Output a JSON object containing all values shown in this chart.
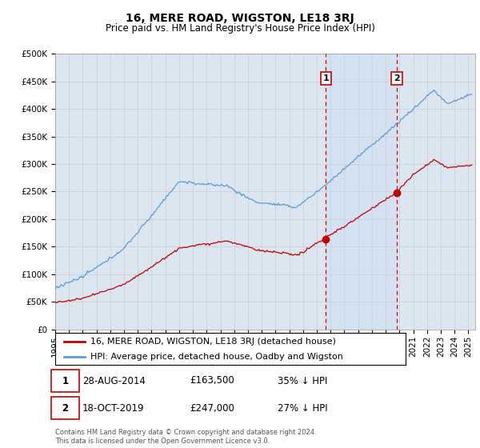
{
  "title": "16, MERE ROAD, WIGSTON, LE18 3RJ",
  "subtitle": "Price paid vs. HM Land Registry's House Price Index (HPI)",
  "ylim": [
    0,
    500000
  ],
  "yticks": [
    0,
    50000,
    100000,
    150000,
    200000,
    250000,
    300000,
    350000,
    400000,
    450000,
    500000
  ],
  "ytick_labels": [
    "£0",
    "£50K",
    "£100K",
    "£150K",
    "£200K",
    "£250K",
    "£300K",
    "£350K",
    "£400K",
    "£450K",
    "£500K"
  ],
  "xlim_start": 1995.0,
  "xlim_end": 2025.5,
  "xticks": [
    1995,
    1996,
    1997,
    1998,
    1999,
    2000,
    2001,
    2002,
    2003,
    2004,
    2005,
    2006,
    2007,
    2008,
    2009,
    2010,
    2011,
    2012,
    2013,
    2014,
    2015,
    2016,
    2017,
    2018,
    2019,
    2020,
    2021,
    2022,
    2023,
    2024,
    2025
  ],
  "hpi_color": "#5b9bd5",
  "price_color": "#c00000",
  "vline_color": "#e00000",
  "shade_color": "#dce6f1",
  "background_color": "#dce6f1",
  "grid_color": "#cccccc",
  "sale1_x": 2014.66,
  "sale1_y": 163500,
  "sale1_label": "1",
  "sale2_x": 2019.8,
  "sale2_y": 247000,
  "sale2_label": "2",
  "legend1_text": "16, MERE ROAD, WIGSTON, LE18 3RJ (detached house)",
  "legend2_text": "HPI: Average price, detached house, Oadby and Wigston",
  "ann1_date": "28-AUG-2014",
  "ann1_price": "£163,500",
  "ann1_hpi": "35% ↓ HPI",
  "ann2_date": "18-OCT-2019",
  "ann2_price": "£247,000",
  "ann2_hpi": "27% ↓ HPI",
  "footer": "Contains HM Land Registry data © Crown copyright and database right 2024.\nThis data is licensed under the Open Government Licence v3.0.",
  "title_fontsize": 10,
  "subtitle_fontsize": 8.5,
  "tick_fontsize": 7.5,
  "legend_fontsize": 8
}
